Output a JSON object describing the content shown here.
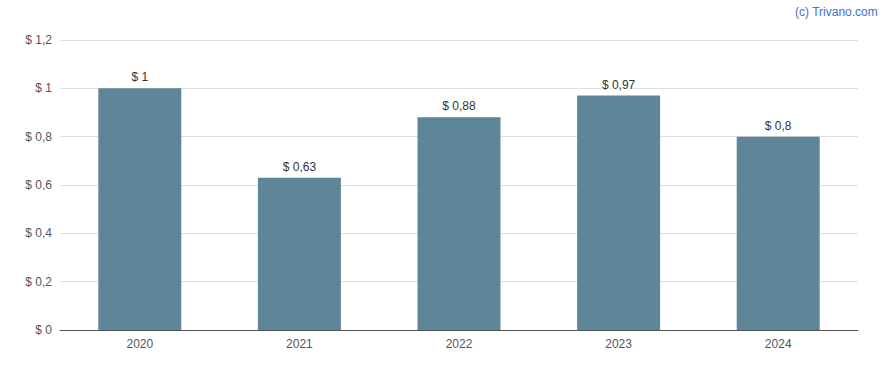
{
  "chart_data": {
    "type": "bar",
    "categories": [
      "2020",
      "2021",
      "2022",
      "2023",
      "2024"
    ],
    "values": [
      1.0,
      0.63,
      0.88,
      0.97,
      0.8
    ],
    "value_labels": [
      "$ 1",
      "$ 0,63",
      "$ 0,88",
      "$ 0,97",
      "$ 0,8"
    ],
    "data_labels": true,
    "color": "#5f8599",
    "ylim": [
      0,
      1.2
    ],
    "yticks": [
      {
        "value": 0,
        "label": "$ 0"
      },
      {
        "value": 0.2,
        "label": "$ 0,2"
      },
      {
        "value": 0.4,
        "label": "$ 0,4"
      },
      {
        "value": 0.6,
        "label": "$ 0,6"
      },
      {
        "value": 0.8,
        "label": "$ 0,8"
      },
      {
        "value": 1.0,
        "label": "$ 1"
      },
      {
        "value": 1.2,
        "label": "$ 1,2"
      }
    ],
    "grid": true,
    "annotations": [
      "(c) Trivano.com"
    ]
  }
}
